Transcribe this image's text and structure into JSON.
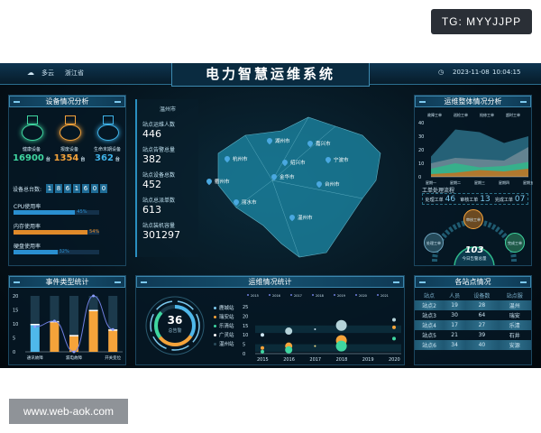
{
  "watermarks": {
    "top": "TG: MYYJJPP",
    "bottom": "www.web-aok.com"
  },
  "header": {
    "weather": "多云",
    "weather_icon": "cloud-icon",
    "region": "浙江省",
    "title": "电力智慧运维系统",
    "date": "2023-11-08",
    "time": "10:04:15",
    "clock_icon": "clock-icon"
  },
  "device_panel": {
    "title": "设备情况分析",
    "stats": [
      {
        "label": "健康设备",
        "value": "16900",
        "unit": "台",
        "color": "#3fd6a0"
      },
      {
        "label": "报废设备",
        "value": "1354",
        "unit": "台",
        "color": "#f5a33a"
      },
      {
        "label": "生命末期设备",
        "value": "362",
        "unit": "台",
        "color": "#3fb2e8"
      }
    ],
    "total_label": "设备总台数:",
    "total_digits": [
      "1",
      "8",
      "6",
      "1",
      "6",
      "0",
      "0"
    ],
    "usage": [
      {
        "label": "CPU使用率",
        "percent": 45,
        "text": "45%",
        "color": "#2a8fd0"
      },
      {
        "label": "内存使用率",
        "percent": 54,
        "text": "54%",
        "color": "#e08a2a"
      },
      {
        "label": "硬盘使用率",
        "percent": 32,
        "text": "32%",
        "color": "#2a8fd0"
      }
    ]
  },
  "city_info": {
    "city": "温州市",
    "items": [
      {
        "label": "站点运维人数",
        "value": "446"
      },
      {
        "label": "站点告警总量",
        "value": "382"
      },
      {
        "label": "站点设备总数",
        "value": "452"
      },
      {
        "label": "站点总派单数",
        "value": "613"
      },
      {
        "label": "站点装机容量",
        "value": "301297"
      }
    ]
  },
  "map": {
    "cities": [
      "湖州市",
      "嘉兴市",
      "杭州市",
      "绍兴市",
      "宁波市",
      "衢州市",
      "金华市",
      "台州市",
      "丽水市",
      "温州市"
    ]
  },
  "ops_panel": {
    "title": "运维整体情况分析",
    "workflow_title": "工单处理流程",
    "workflow": [
      {
        "label": "处理工单",
        "value": "46"
      },
      {
        "label": "审核工单",
        "value": "13"
      },
      {
        "label": "完成工单",
        "value": "07"
      }
    ],
    "nodes": {
      "top": "审核工单",
      "left": "处理工单",
      "right": "完成工单"
    },
    "center_value": "103",
    "center_label": "今日告警总量"
  },
  "event_panel": {
    "title": "事件类型统计"
  },
  "stats_panel": {
    "title": "运维情况统计",
    "gauge_value": "36",
    "gauge_label": "总告警",
    "legend": [
      {
        "label": "鹿城站",
        "color": "#7cc9ee"
      },
      {
        "label": "瑞安站",
        "color": "#f5a33a"
      },
      {
        "label": "乐清站",
        "color": "#3fd6a0"
      },
      {
        "label": "广灵站",
        "color": "#ffffff"
      },
      {
        "label": "温州站",
        "color": "#2a4a5a"
      }
    ]
  },
  "station_panel": {
    "title": "各站点情况",
    "columns": [
      "站点",
      "人员",
      "设备数",
      "站点服"
    ],
    "rows": [
      [
        "站点2",
        "19",
        "28",
        "温州"
      ],
      [
        "站点3",
        "30",
        "64",
        "瑞安"
      ],
      [
        "站点4",
        "17",
        "27",
        "乐清"
      ],
      [
        "站点5",
        "21",
        "39",
        "石井"
      ],
      [
        "站点6",
        "34",
        "40",
        "安源"
      ]
    ]
  },
  "chart_data": [
    {
      "type": "area",
      "title": "",
      "legend": [
        "故障工单",
        "巡检工单",
        "抢修工单",
        "超时工单"
      ],
      "categories": [
        "星期一",
        "星期二",
        "星期三",
        "星期四",
        "星期五"
      ],
      "ylim": [
        0,
        40
      ],
      "yticks": [
        0,
        10,
        20,
        30,
        40
      ],
      "series": [
        {
          "name": "故障工单",
          "values": [
            15,
            35,
            33,
            25,
            30
          ],
          "color": "#2c6f86"
        },
        {
          "name": "巡检工单",
          "values": [
            10,
            14,
            13,
            12,
            22
          ],
          "color": "#6f8a95"
        },
        {
          "name": "抢修工单",
          "values": [
            6,
            10,
            7,
            8,
            11
          ],
          "color": "#2fb98a"
        },
        {
          "name": "超时工单",
          "values": [
            2,
            3,
            5,
            4,
            6
          ],
          "color": "#c6701e"
        }
      ]
    },
    {
      "type": "bar",
      "title": "",
      "categories": [
        "通讯故障",
        "",
        "漏电故障",
        "",
        "开关变位"
      ],
      "ylim": [
        0,
        20
      ],
      "yticks": [
        0,
        5,
        10,
        15,
        20
      ],
      "series": [
        {
          "values": [
            10,
            11,
            6,
            15,
            8
          ]
        }
      ],
      "line": [
        9,
        11,
        0,
        20,
        8
      ],
      "bar_colors": [
        "#4fb8ea",
        "#f5a33a",
        "#f5a33a",
        "#f5a33a",
        "#f5a33a"
      ]
    },
    {
      "type": "scatter",
      "title": "",
      "legend": [
        "2015",
        "2016",
        "2017",
        "2018",
        "2019",
        "2020",
        "2021"
      ],
      "x": [
        2015,
        2016,
        2017,
        2018,
        2019,
        2020
      ],
      "ylim": [
        0,
        25
      ],
      "yticks": [
        0,
        5,
        10,
        15,
        20,
        25
      ],
      "points": [
        {
          "x": 2015,
          "y": 10,
          "r": 2,
          "color": "#cfe6f3"
        },
        {
          "x": 2015,
          "y": 3,
          "r": 2,
          "color": "#f5a33a"
        },
        {
          "x": 2015,
          "y": 1,
          "r": 2,
          "color": "#3fd6a0"
        },
        {
          "x": 2016,
          "y": 12,
          "r": 4,
          "color": "#b5d3da"
        },
        {
          "x": 2016,
          "y": 4,
          "r": 4,
          "color": "#f5a33a"
        },
        {
          "x": 2016,
          "y": 2,
          "r": 4,
          "color": "#3fd6a0"
        },
        {
          "x": 2017,
          "y": 13,
          "r": 1,
          "color": "#cfe6f3"
        },
        {
          "x": 2017,
          "y": 4,
          "r": 1,
          "color": "#f5e08a"
        },
        {
          "x": 2018,
          "y": 15,
          "r": 6,
          "color": "#b5d3da"
        },
        {
          "x": 2018,
          "y": 7,
          "r": 6,
          "color": "#f5a33a"
        },
        {
          "x": 2018,
          "y": 4,
          "r": 6,
          "color": "#3fd6a0"
        },
        {
          "x": 2020,
          "y": 18,
          "r": 2,
          "color": "#b5d3da"
        },
        {
          "x": 2020,
          "y": 14,
          "r": 2,
          "color": "#f5a33a"
        },
        {
          "x": 2020,
          "y": 8,
          "r": 2,
          "color": "#3fd6a0"
        }
      ]
    }
  ]
}
